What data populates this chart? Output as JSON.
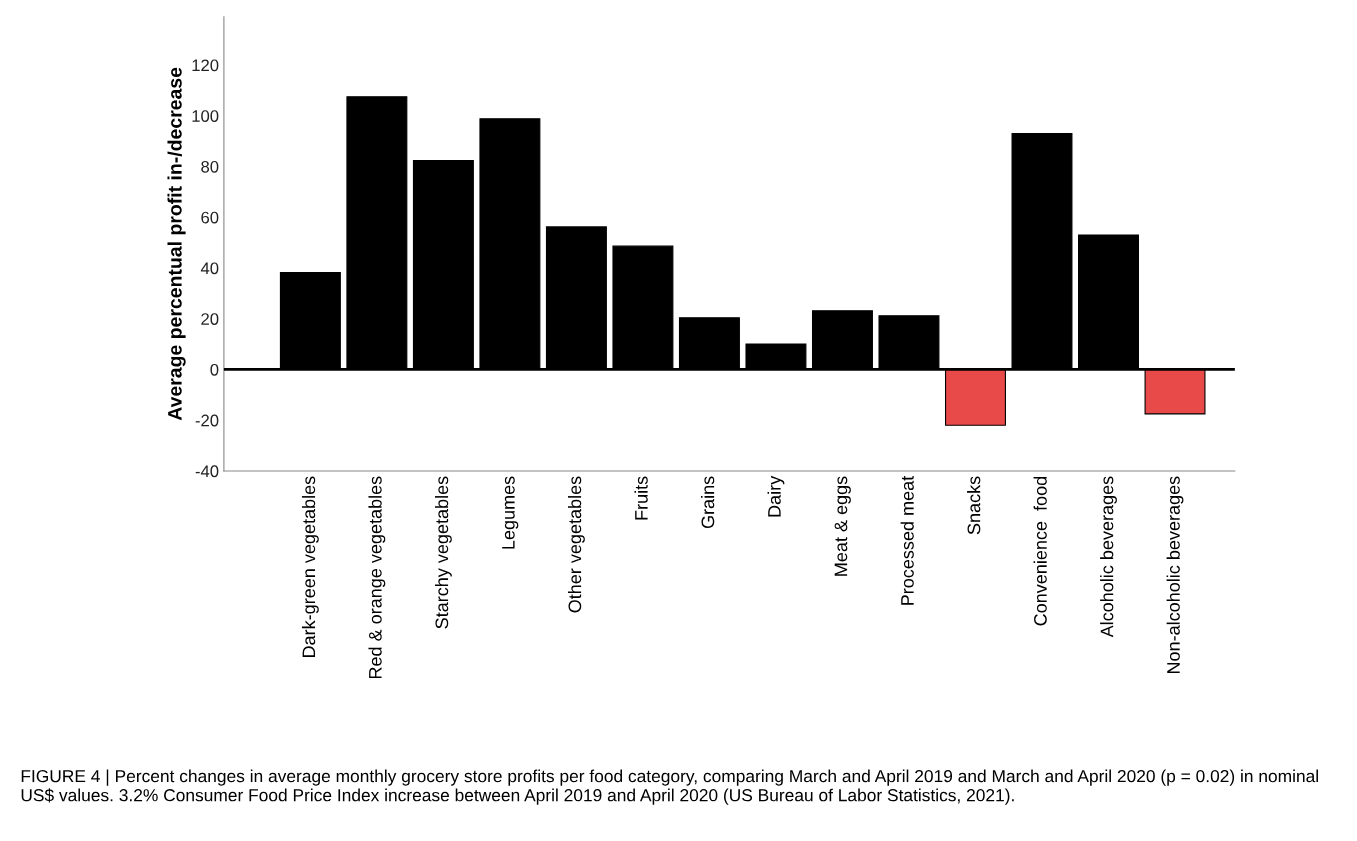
{
  "chart_data": {
    "type": "bar",
    "ylabel": "Average percentual profit in-/decrease",
    "categories": [
      "Dark-green vegetables",
      "Red & orange vegetables",
      "Starchy vegetables",
      "Legumes",
      "Other vegetables",
      "Fruits",
      "Grains",
      "Dairy",
      "Meat & eggs",
      "Processed meat",
      "Snacks",
      "Convenience  food",
      "Alcoholic beverages",
      "Non-alcoholic beverages"
    ],
    "values": [
      38.2,
      107.5,
      82.3,
      98.8,
      56.2,
      48.6,
      20.4,
      10.0,
      23.1,
      21.2,
      -22.0,
      93.0,
      53.0,
      -17.5
    ],
    "colors": [
      "#000000",
      "#000000",
      "#000000",
      "#000000",
      "#000000",
      "#000000",
      "#000000",
      "#000000",
      "#000000",
      "#000000",
      "#e84a4a",
      "#000000",
      "#000000",
      "#e84a4a"
    ],
    "ylim": [
      -40,
      139
    ],
    "yticks": [
      -40,
      -20,
      0,
      20,
      40,
      60,
      80,
      100,
      120
    ],
    "ref_lines": [
      {
        "axis": "y",
        "value": 0,
        "color": "#000000"
      }
    ],
    "grid": false,
    "legend": false,
    "annotations": [
      "FIGURE 4 | Percent changes in average monthly grocery store profits per food category, comparing March and April 2019 and March and April 2020 (p = 0.02) in nominal US$ values. 3.2% Consumer Food Price Index increase between April 2019 and April 2020 (US Bureau of Labor Statistics, 2021)."
    ]
  }
}
